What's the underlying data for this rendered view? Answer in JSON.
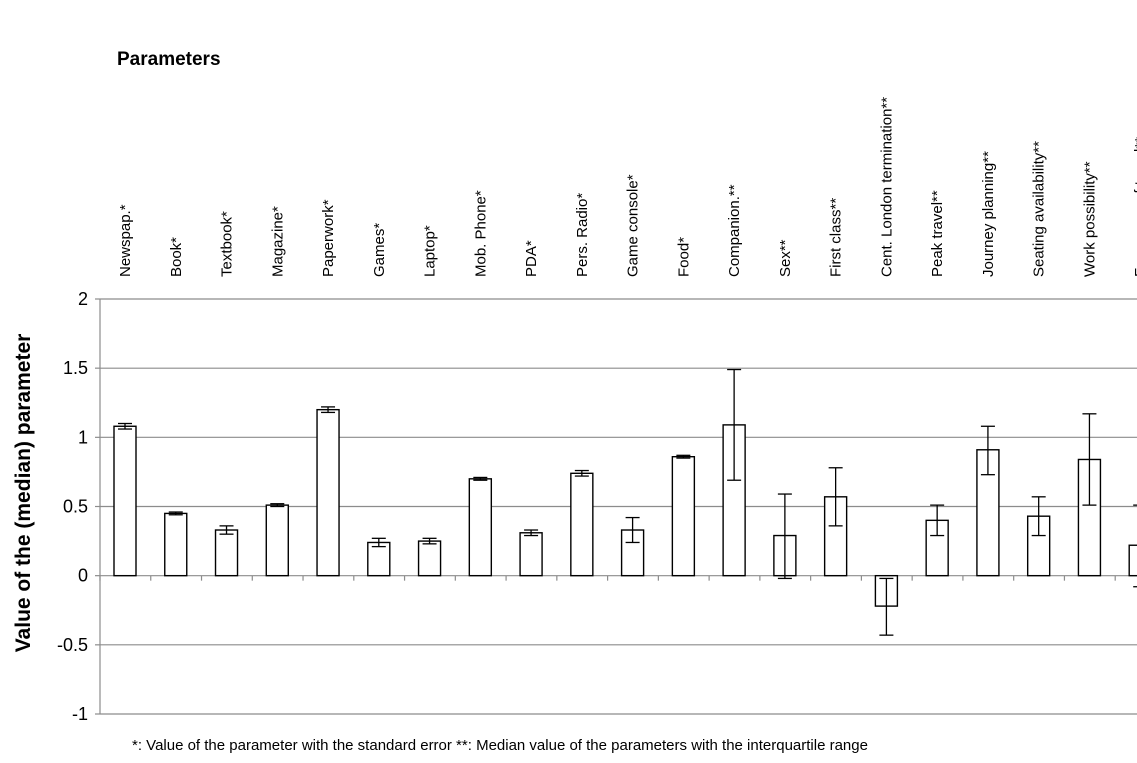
{
  "chart_data": {
    "type": "bar",
    "title": "Parameters",
    "ylabel": "Value of the (median) parameter",
    "xlabel": "",
    "ylim": [
      -1,
      2
    ],
    "yticks": [
      "2",
      "1.5",
      "1",
      "0.5",
      "0",
      "-0.5",
      "-1"
    ],
    "ytick_values": [
      2,
      1.5,
      1,
      0.5,
      0,
      -0.5,
      -1
    ],
    "grid": true,
    "legend": "none",
    "footnote": "*: Value of the parameter with the standard error  **: Median value of the parameters with the interquartile range",
    "categories": [
      "Newspap.*",
      "Book*",
      "Textbook*",
      "Magazine*",
      "Paperwork*",
      "Games*",
      "Laptop*",
      "Mob. Phone*",
      "PDA*",
      "Pers. Radio*",
      "Game console*",
      "Food*",
      "Companion.**",
      "Sex**",
      "First class**",
      "Cent. London termination**",
      "Peak travel**",
      "Journey planning**",
      "Seating  availability**",
      "Work possibility**",
      "Frequency of travel**"
    ],
    "values": [
      1.08,
      0.45,
      0.33,
      0.51,
      1.2,
      0.24,
      0.25,
      0.7,
      0.31,
      0.74,
      0.33,
      0.86,
      1.09,
      0.29,
      0.57,
      -0.22,
      0.4,
      0.91,
      0.43,
      0.84,
      0.22
    ],
    "error_low": [
      1.06,
      0.44,
      0.3,
      0.5,
      1.18,
      0.21,
      0.23,
      0.69,
      0.29,
      0.72,
      0.24,
      0.85,
      0.69,
      -0.02,
      0.36,
      -0.43,
      0.29,
      0.73,
      0.29,
      0.51,
      -0.08
    ],
    "error_high": [
      1.1,
      0.46,
      0.36,
      0.52,
      1.22,
      0.27,
      0.27,
      0.71,
      0.33,
      0.76,
      0.42,
      0.87,
      1.49,
      0.59,
      0.78,
      -0.02,
      0.51,
      1.08,
      0.57,
      1.17,
      0.51
    ]
  }
}
